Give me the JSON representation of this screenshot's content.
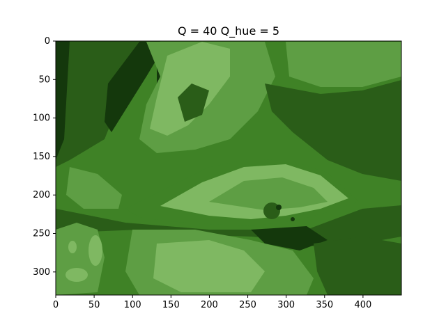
{
  "chart_data": {
    "type": "heatmap",
    "title": "Q = 40 Q_hue = 5",
    "xlabel": "",
    "ylabel": "",
    "xlim": [
      0,
      450
    ],
    "ylim": [
      330,
      0
    ],
    "x_ticks": [
      0,
      50,
      100,
      150,
      200,
      250,
      300,
      350,
      400
    ],
    "y_ticks": [
      0,
      50,
      100,
      150,
      200,
      250,
      300
    ],
    "grid": false,
    "colors": {
      "darkest": "#14380c",
      "dark": "#2a5d18",
      "mid": "#3f8226",
      "light": "#5e9e44",
      "lightest": "#7fb862"
    }
  }
}
